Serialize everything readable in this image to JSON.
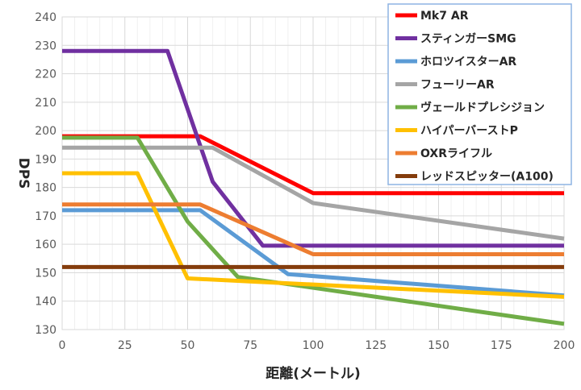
{
  "chart_data": {
    "type": "line",
    "title": "",
    "xlabel": "距離(メートル)",
    "ylabel": "DPS",
    "xlim": [
      0,
      200
    ],
    "ylim": [
      130,
      240
    ],
    "xticks": [
      0,
      25,
      50,
      75,
      100,
      125,
      150,
      175,
      200
    ],
    "yticks": [
      130,
      140,
      150,
      160,
      170,
      180,
      190,
      200,
      210,
      220,
      230,
      240
    ],
    "grid": true,
    "legend_position": "top-right",
    "series": [
      {
        "name": "Mk7 AR",
        "color": "#ff0000",
        "points": [
          [
            0,
            198
          ],
          [
            55,
            198
          ],
          [
            100,
            178
          ],
          [
            200,
            178
          ]
        ]
      },
      {
        "name": "スティンガーSMG",
        "color": "#7030a0",
        "points": [
          [
            0,
            228
          ],
          [
            42,
            228
          ],
          [
            60,
            182
          ],
          [
            80,
            159.5
          ],
          [
            200,
            159.5
          ]
        ]
      },
      {
        "name": "ホロツイスターAR",
        "color": "#5b9bd5",
        "points": [
          [
            0,
            172
          ],
          [
            55,
            172
          ],
          [
            90,
            149.5
          ],
          [
            200,
            142
          ]
        ]
      },
      {
        "name": "フューリーAR",
        "color": "#a5a5a5",
        "points": [
          [
            0,
            194
          ],
          [
            60,
            194
          ],
          [
            100,
            174.5
          ],
          [
            200,
            162
          ]
        ]
      },
      {
        "name": "ヴェールドプレシジョン",
        "color": "#70ad47",
        "points": [
          [
            0,
            197.5
          ],
          [
            30,
            197.5
          ],
          [
            50,
            168
          ],
          [
            70,
            148.5
          ],
          [
            200,
            132
          ]
        ]
      },
      {
        "name": "ハイパーバーストP",
        "color": "#ffc000",
        "points": [
          [
            0,
            185
          ],
          [
            30,
            185
          ],
          [
            50,
            148
          ],
          [
            200,
            141.5
          ]
        ]
      },
      {
        "name": "OXRライフル",
        "color": "#ed7d31",
        "points": [
          [
            0,
            174
          ],
          [
            55,
            174
          ],
          [
            100,
            156.5
          ],
          [
            200,
            156.5
          ]
        ]
      },
      {
        "name": "レッドスピッター(A100)",
        "color": "#843c0c",
        "points": [
          [
            0,
            152
          ],
          [
            200,
            152
          ]
        ]
      }
    ]
  }
}
